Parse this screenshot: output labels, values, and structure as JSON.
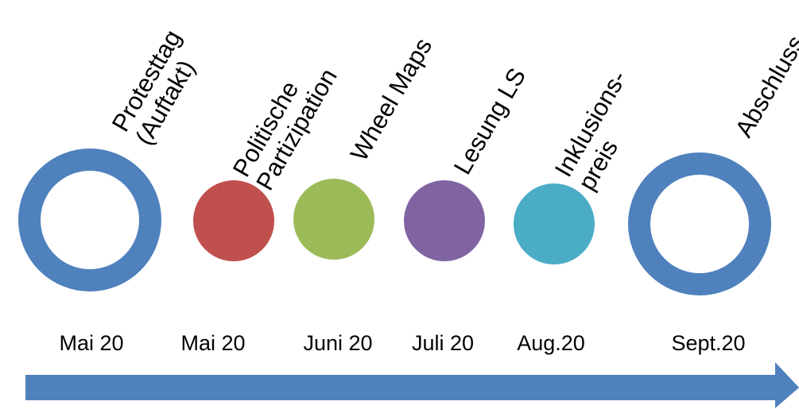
{
  "colors": {
    "blue": "#4F81BD",
    "red": "#C0504D",
    "green": "#9BBB59",
    "purple": "#8064A2",
    "teal": "#4BACC6"
  },
  "milestones": [
    {
      "label_line1": "Protesttag",
      "label_line2": "(Auftakt)",
      "date": "Mai 20",
      "style": "ring",
      "color": "#4F81BD"
    },
    {
      "label_line1": "Politische",
      "label_line2": "Partizipation",
      "date": "Mai 20",
      "style": "dot",
      "color": "#C0504D"
    },
    {
      "label_line1": "Wheel Maps",
      "label_line2": "",
      "date": "Juni 20",
      "style": "dot",
      "color": "#9BBB59"
    },
    {
      "label_line1": "Lesung LS",
      "label_line2": "",
      "date": "Juli 20",
      "style": "dot",
      "color": "#8064A2"
    },
    {
      "label_line1": "Inklusions-",
      "label_line2": "preis",
      "date": "Aug.20",
      "style": "dot",
      "color": "#4BACC6"
    },
    {
      "label_line1": "Abschluss",
      "label_line2": "",
      "date": "Sept.20",
      "style": "ring",
      "color": "#4F81BD"
    }
  ],
  "arrow": {
    "color": "#4F81BD"
  }
}
